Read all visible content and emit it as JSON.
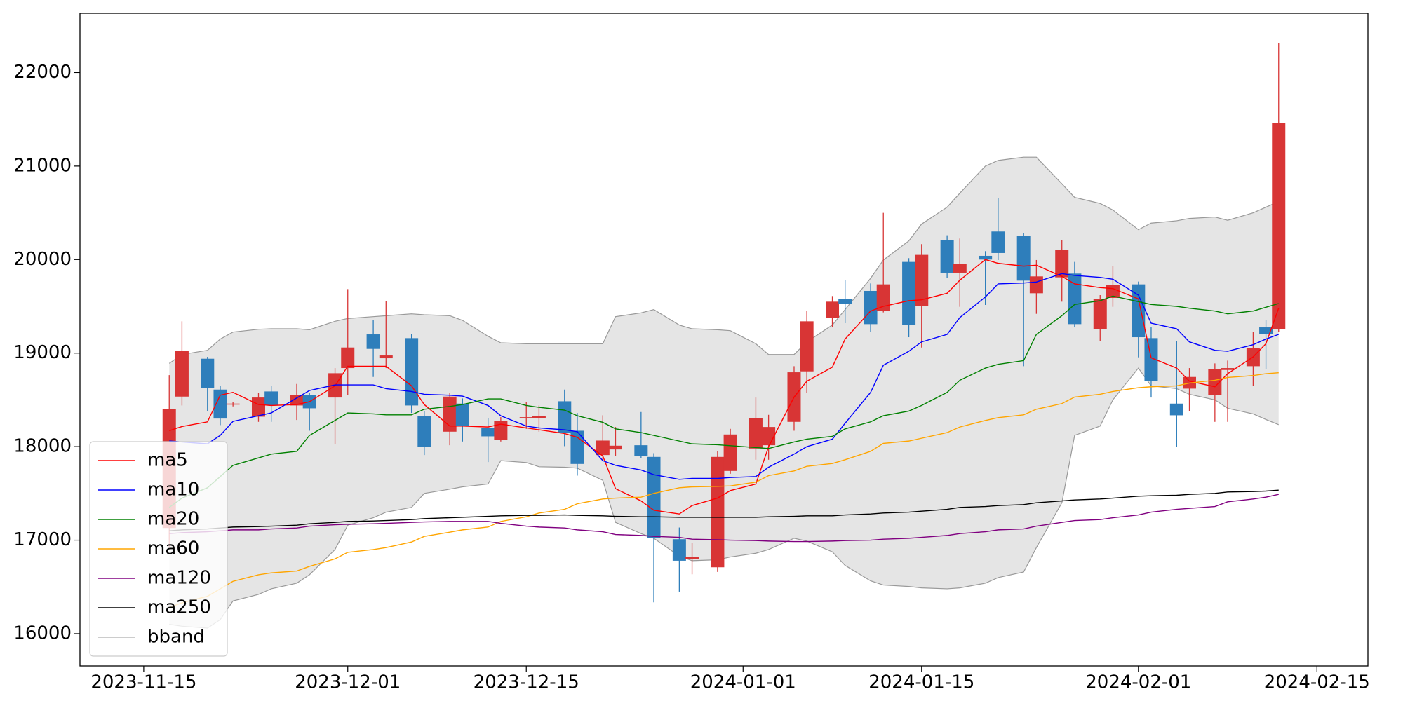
{
  "chart_data": {
    "type": "candlestick",
    "x": [
      "2023-11-17",
      "2023-11-18",
      "2023-11-20",
      "2023-11-21",
      "2023-11-22",
      "2023-11-24",
      "2023-11-25",
      "2023-11-27",
      "2023-11-28",
      "2023-11-30",
      "2023-12-01",
      "2023-12-03",
      "2023-12-04",
      "2023-12-06",
      "2023-12-07",
      "2023-12-09",
      "2023-12-10",
      "2023-12-12",
      "2023-12-13",
      "2023-12-15",
      "2023-12-16",
      "2023-12-18",
      "2023-12-19",
      "2023-12-21",
      "2023-12-22",
      "2023-12-24",
      "2023-12-25",
      "2023-12-27",
      "2023-12-28",
      "2023-12-30",
      "2023-12-31",
      "2024-01-02",
      "2024-01-03",
      "2024-01-05",
      "2024-01-06",
      "2024-01-08",
      "2024-01-09",
      "2024-01-11",
      "2024-01-12",
      "2024-01-14",
      "2024-01-15",
      "2024-01-17",
      "2024-01-18",
      "2024-01-20",
      "2024-01-21",
      "2024-01-23",
      "2024-01-24",
      "2024-01-26",
      "2024-01-27",
      "2024-01-29",
      "2024-01-30",
      "2024-02-01",
      "2024-02-02",
      "2024-02-04",
      "2024-02-05",
      "2024-02-07",
      "2024-02-08",
      "2024-02-10",
      "2024-02-11",
      "2024-02-12"
    ],
    "open": [
      17130,
      18535,
      18940,
      18610,
      18450,
      18320,
      18590,
      18440,
      18555,
      18525,
      18840,
      19200,
      18945,
      19160,
      18330,
      18160,
      18460,
      18200,
      18075,
      18305,
      18305,
      18485,
      18170,
      17910,
      17970,
      18015,
      17890,
      17010,
      16800,
      16710,
      17740,
      17980,
      18015,
      18265,
      18805,
      19380,
      19580,
      19665,
      19455,
      19975,
      19505,
      20205,
      19860,
      20040,
      20300,
      20255,
      19640,
      19810,
      19850,
      19255,
      19590,
      19735,
      19160,
      18460,
      18620,
      18555,
      18820,
      18860,
      19275,
      19255
    ],
    "close": [
      18400,
      19025,
      18630,
      18300,
      18460,
      18525,
      18440,
      18555,
      18410,
      18785,
      19060,
      19045,
      18975,
      18440,
      17995,
      18535,
      18220,
      18110,
      18275,
      18315,
      18330,
      18150,
      17815,
      18065,
      18010,
      17900,
      17020,
      16780,
      16820,
      17890,
      18130,
      18305,
      18210,
      18795,
      19340,
      19550,
      19525,
      19310,
      19735,
      19300,
      20050,
      19860,
      19955,
      20000,
      20070,
      19775,
      19820,
      20100,
      19310,
      19580,
      19725,
      19170,
      18705,
      18335,
      18745,
      18830,
      18840,
      19055,
      19205,
      21460
    ],
    "high": [
      18765,
      19340,
      18960,
      18650,
      18480,
      18575,
      18650,
      18670,
      18575,
      18840,
      19685,
      19350,
      19560,
      19205,
      18380,
      18575,
      18515,
      18305,
      18315,
      18475,
      18440,
      18610,
      18360,
      18335,
      18210,
      18370,
      17930,
      17135,
      16970,
      17950,
      18190,
      18525,
      18340,
      18860,
      19455,
      19610,
      19780,
      19745,
      20500,
      20015,
      20165,
      20260,
      20225,
      20090,
      20655,
      20280,
      19995,
      20205,
      19975,
      19620,
      19935,
      19765,
      19275,
      19130,
      18840,
      18890,
      18920,
      19225,
      19350,
      22315
    ],
    "low": [
      16920,
      18440,
      18380,
      18230,
      18430,
      18265,
      18265,
      18285,
      18170,
      18025,
      18555,
      18745,
      18840,
      18360,
      17910,
      18015,
      18055,
      17835,
      18055,
      18190,
      18160,
      18005,
      17690,
      17850,
      17900,
      17880,
      16335,
      16450,
      16635,
      16660,
      17710,
      17860,
      17860,
      18170,
      18575,
      19275,
      19320,
      19225,
      19435,
      19170,
      19060,
      19800,
      19495,
      19515,
      19995,
      18860,
      19420,
      19550,
      19275,
      19130,
      19495,
      18955,
      18525,
      17995,
      18380,
      18265,
      18265,
      18650,
      18830,
      19225
    ],
    "up_color": "#d83535",
    "down_color": "#2e7ebb",
    "series": [
      {
        "name": "ma5",
        "color": "#ff0000",
        "values": [
          18170,
          18215,
          18265,
          18550,
          18580,
          18450,
          18440,
          18450,
          18480,
          18650,
          18860,
          18860,
          18860,
          18650,
          18450,
          18220,
          18220,
          18210,
          18240,
          18200,
          18180,
          18140,
          18100,
          17900,
          17550,
          17420,
          17320,
          17280,
          17370,
          17450,
          17530,
          17600,
          18000,
          18530,
          18700,
          18850,
          19150,
          19450,
          19500,
          19560,
          19570,
          19640,
          19780,
          20000,
          19960,
          19930,
          19940,
          19820,
          19740,
          19700,
          19690,
          19580,
          18950,
          18840,
          18700,
          18640,
          18780,
          18960,
          19100,
          19480
        ]
      },
      {
        "name": "ma10",
        "color": "#0000ff",
        "values": [
          18060,
          18050,
          18030,
          18120,
          18270,
          18330,
          18360,
          18520,
          18600,
          18660,
          18660,
          18660,
          18620,
          18590,
          18560,
          18550,
          18540,
          18440,
          18330,
          18220,
          18200,
          18180,
          18160,
          17850,
          17800,
          17750,
          17700,
          17650,
          17660,
          17660,
          17670,
          17680,
          17780,
          17920,
          18000,
          18080,
          18250,
          18580,
          18870,
          19020,
          19120,
          19200,
          19380,
          19600,
          19740,
          19750,
          19760,
          19850,
          19830,
          19810,
          19790,
          19620,
          19320,
          19260,
          19120,
          19030,
          19020,
          19090,
          19150,
          19200
        ]
      },
      {
        "name": "ma20",
        "color": "#008000",
        "values": [
          17350,
          17450,
          17560,
          17680,
          17800,
          17880,
          17920,
          17950,
          18120,
          18280,
          18360,
          18350,
          18340,
          18340,
          18400,
          18430,
          18450,
          18510,
          18510,
          18440,
          18420,
          18390,
          18330,
          18260,
          18190,
          18150,
          18120,
          18060,
          18030,
          18020,
          18010,
          17990,
          17980,
          18050,
          18080,
          18110,
          18190,
          18265,
          18330,
          18380,
          18440,
          18580,
          18710,
          18840,
          18880,
          18920,
          19200,
          19400,
          19520,
          19560,
          19610,
          19550,
          19520,
          19500,
          19480,
          19450,
          19420,
          19450,
          19490,
          19530
        ]
      },
      {
        "name": "ma60",
        "color": "#ffa500",
        "values": [
          16280,
          16330,
          16400,
          16480,
          16560,
          16630,
          16650,
          16670,
          16720,
          16800,
          16870,
          16900,
          16920,
          16980,
          17040,
          17085,
          17110,
          17140,
          17200,
          17250,
          17290,
          17330,
          17390,
          17440,
          17450,
          17460,
          17500,
          17560,
          17570,
          17575,
          17580,
          17620,
          17690,
          17740,
          17790,
          17820,
          17860,
          17950,
          18035,
          18060,
          18090,
          18150,
          18210,
          18280,
          18310,
          18340,
          18400,
          18460,
          18530,
          18560,
          18590,
          18630,
          18640,
          18650,
          18680,
          18710,
          18740,
          18760,
          18780,
          18790
        ]
      },
      {
        "name": "ma120",
        "color": "#800080",
        "values": [
          17070,
          17080,
          17090,
          17100,
          17110,
          17110,
          17120,
          17130,
          17150,
          17165,
          17170,
          17175,
          17180,
          17190,
          17195,
          17200,
          17200,
          17200,
          17180,
          17150,
          17140,
          17130,
          17110,
          17090,
          17060,
          17050,
          17040,
          17030,
          17010,
          17005,
          17000,
          16995,
          16990,
          16985,
          16985,
          16990,
          16995,
          17000,
          17010,
          17020,
          17030,
          17050,
          17070,
          17090,
          17110,
          17120,
          17150,
          17190,
          17210,
          17220,
          17240,
          17270,
          17300,
          17330,
          17340,
          17360,
          17410,
          17440,
          17460,
          17490
        ]
      },
      {
        "name": "ma250",
        "color": "#000000",
        "values": [
          17100,
          17110,
          17120,
          17130,
          17140,
          17145,
          17150,
          17160,
          17175,
          17190,
          17200,
          17205,
          17210,
          17220,
          17230,
          17240,
          17245,
          17255,
          17260,
          17265,
          17265,
          17270,
          17265,
          17260,
          17255,
          17250,
          17250,
          17245,
          17245,
          17245,
          17245,
          17245,
          17250,
          17255,
          17260,
          17260,
          17270,
          17280,
          17290,
          17300,
          17310,
          17330,
          17350,
          17360,
          17370,
          17380,
          17400,
          17420,
          17430,
          17440,
          17450,
          17470,
          17475,
          17480,
          17490,
          17500,
          17515,
          17520,
          17525,
          17535
        ]
      }
    ],
    "bband": {
      "name": "bband",
      "color": "#999999",
      "fill": "#e5e5e5",
      "upper": [
        18890,
        18985,
        19030,
        19150,
        19225,
        19255,
        19260,
        19260,
        19250,
        19340,
        19370,
        19390,
        19400,
        19420,
        19410,
        19400,
        19350,
        19180,
        19110,
        19100,
        19100,
        19100,
        19100,
        19100,
        19390,
        19430,
        19465,
        19300,
        19260,
        19250,
        19240,
        19100,
        18985,
        18985,
        19120,
        19300,
        19465,
        19800,
        19995,
        20200,
        20380,
        20560,
        20710,
        21000,
        21060,
        21095,
        21095,
        20810,
        20665,
        20600,
        20530,
        20320,
        20390,
        20415,
        20440,
        20455,
        20420,
        20500,
        20560,
        20620
      ],
      "lower": [
        16100,
        16080,
        16060,
        16150,
        16350,
        16420,
        16480,
        16540,
        16630,
        16900,
        17160,
        17240,
        17300,
        17350,
        17500,
        17545,
        17570,
        17600,
        17850,
        17830,
        17785,
        17780,
        17770,
        17640,
        17190,
        17070,
        17020,
        16830,
        16780,
        16790,
        16820,
        16860,
        16900,
        17020,
        16990,
        16875,
        16730,
        16565,
        16520,
        16505,
        16490,
        16480,
        16490,
        16540,
        16600,
        16660,
        16920,
        17400,
        18120,
        18220,
        18500,
        18840,
        18650,
        18620,
        18560,
        18500,
        18410,
        18350,
        18290,
        18235
      ]
    },
    "xlim": [
      "2023-11-10",
      "2024-02-19"
    ],
    "xticks": [
      "2023-11-15",
      "2023-12-01",
      "2023-12-15",
      "2024-01-01",
      "2024-01-15",
      "2024-02-01",
      "2024-02-15"
    ],
    "ylim": [
      15655,
      22633
    ],
    "yticks": [
      16000,
      17000,
      18000,
      19000,
      20000,
      21000,
      22000
    ],
    "legend": "lower left"
  }
}
